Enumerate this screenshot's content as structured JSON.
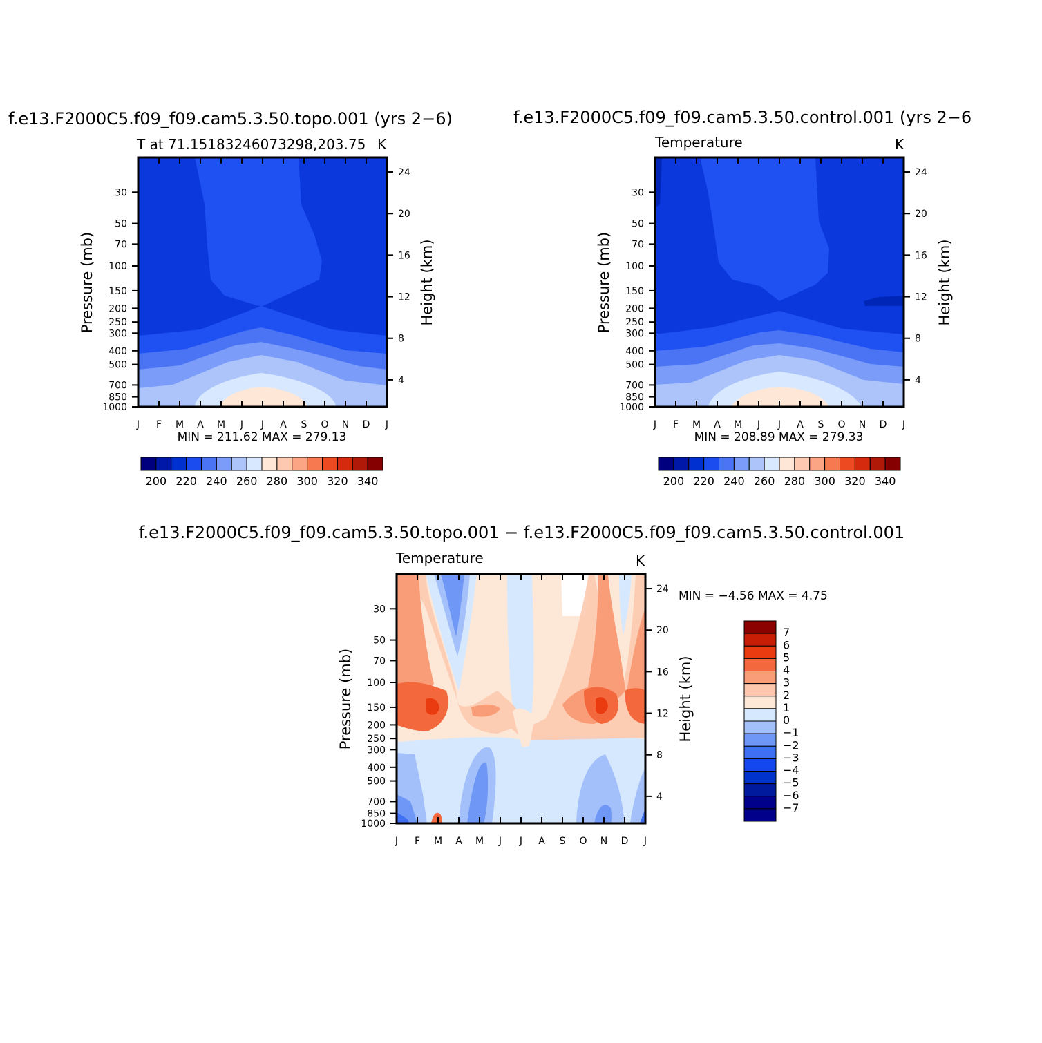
{
  "chart_data": [
    {
      "type": "heatmap",
      "title": "f.e13.F2000C5.f09_f09.cam5.3.50.topo.001  (yrs  2−6)",
      "subtitle": "T  at  71.15183246073298,203.75",
      "units": "K",
      "ylabel": "Pressure  (mb)",
      "ylabel_right": "Height  (km)",
      "x_ticks": [
        "J",
        "F",
        "M",
        "A",
        "M",
        "J",
        "J",
        "A",
        "S",
        "O",
        "N",
        "D",
        "J"
      ],
      "y_ticks": [
        "30",
        "50",
        "70",
        "100",
        "150",
        "200",
        "250",
        "300",
        "400",
        "500",
        "700",
        "850",
        "1000"
      ],
      "y_right_ticks": [
        "24",
        "20",
        "16",
        "12",
        "8",
        "4"
      ],
      "stats": "MIN  =  211.62  MAX  =  279.13",
      "min": 211.62,
      "max": 279.13,
      "colorbar_labels": [
        "200",
        "220",
        "240",
        "260",
        "280",
        "300",
        "320",
        "340"
      ]
    },
    {
      "type": "heatmap",
      "title": "f.e13.F2000C5.f09_f09.cam5.3.50.control.001  (yrs  2−6",
      "subtitle": "Temperature",
      "units": "K",
      "ylabel": "Pressure  (mb)",
      "ylabel_right": "Height  (km)",
      "x_ticks": [
        "J",
        "F",
        "M",
        "A",
        "M",
        "J",
        "J",
        "A",
        "S",
        "O",
        "N",
        "D",
        "J"
      ],
      "y_ticks": [
        "30",
        "50",
        "70",
        "100",
        "150",
        "200",
        "250",
        "300",
        "400",
        "500",
        "700",
        "850",
        "1000"
      ],
      "y_right_ticks": [
        "24",
        "20",
        "16",
        "12",
        "8",
        "4"
      ],
      "stats": "MIN  =  208.89  MAX  =  279.33",
      "min": 208.89,
      "max": 279.33,
      "colorbar_labels": [
        "200",
        "220",
        "240",
        "260",
        "280",
        "300",
        "320",
        "340"
      ]
    },
    {
      "type": "heatmap",
      "title": "f.e13.F2000C5.f09_f09.cam5.3.50.topo.001  −  f.e13.F2000C5.f09_f09.cam5.3.50.control.001",
      "subtitle": "Temperature",
      "units": "K",
      "ylabel": "Pressure  (mb)",
      "ylabel_right": "Height  (km)",
      "x_ticks": [
        "J",
        "F",
        "M",
        "A",
        "M",
        "J",
        "J",
        "A",
        "S",
        "O",
        "N",
        "D",
        "J"
      ],
      "y_ticks": [
        "30",
        "50",
        "70",
        "100",
        "150",
        "200",
        "250",
        "300",
        "400",
        "500",
        "700",
        "850",
        "1000"
      ],
      "y_right_ticks": [
        "24",
        "20",
        "16",
        "12",
        "8",
        "4"
      ],
      "stats": "MIN  =    −4.56  MAX  =     4.75",
      "min": -4.56,
      "max": 4.75,
      "colorbar_labels": [
        "7",
        "6",
        "5",
        "4",
        "3",
        "2",
        "1",
        "0",
        "−1",
        "−2",
        "−3",
        "−4",
        "−5",
        "−6",
        "−7"
      ]
    }
  ],
  "colors": {
    "temp_scale": [
      "#00007f",
      "#0018a8",
      "#0030d0",
      "#1a4cf0",
      "#4a74f4",
      "#7b9cf8",
      "#adc4fb",
      "#d8e8fe",
      "#fee7d6",
      "#fdc9b1",
      "#fba585",
      "#f7794f",
      "#ee4a22",
      "#d62a0f",
      "#b01908",
      "#850000"
    ],
    "diff_scale": [
      "#00008b",
      "#001a9e",
      "#0033cc",
      "#1447f0",
      "#3f6ff2",
      "#6f97f6",
      "#a3c0fa",
      "#d6e8fd",
      "#fde8d8",
      "#fcc7ad",
      "#f99c78",
      "#f4683d",
      "#ea3a10",
      "#c71e05",
      "#8b0000"
    ]
  }
}
